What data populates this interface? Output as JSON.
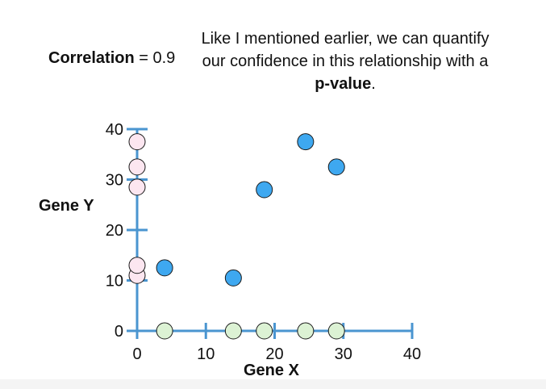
{
  "header": {
    "correlation_label": "Correlation",
    "equals": "=",
    "correlation_value": "0.9",
    "narration_part1": "Like I mentioned earlier, we can quantify our confidence in this relationship with a ",
    "narration_bold": "p-value",
    "narration_end": "."
  },
  "chart_data": {
    "type": "scatter",
    "xlabel": "Gene X",
    "ylabel": "Gene Y",
    "xlim": [
      0,
      40
    ],
    "ylim": [
      0,
      40
    ],
    "xticks": [
      0,
      10,
      20,
      30,
      40
    ],
    "yticks": [
      0,
      10,
      20,
      30,
      40
    ],
    "grid": false,
    "series": [
      {
        "points": [
          [
            4,
            12.5
          ],
          [
            14,
            10.5
          ],
          [
            18.5,
            28
          ],
          [
            24.5,
            37.5
          ],
          [
            29,
            32.5
          ]
        ],
        "color": "#3ea8f0"
      },
      {
        "points": [
          [
            0,
            11
          ],
          [
            0,
            13
          ],
          [
            0,
            28.5
          ],
          [
            0,
            32.5
          ],
          [
            0,
            37.5
          ]
        ],
        "color": "#fce6f0"
      },
      {
        "points": [
          [
            4,
            0
          ],
          [
            14,
            0
          ],
          [
            18.5,
            0
          ],
          [
            24.5,
            0
          ],
          [
            29,
            0
          ]
        ],
        "color": "#dcf2d4"
      }
    ],
    "axis_color": "#4a95d0"
  }
}
